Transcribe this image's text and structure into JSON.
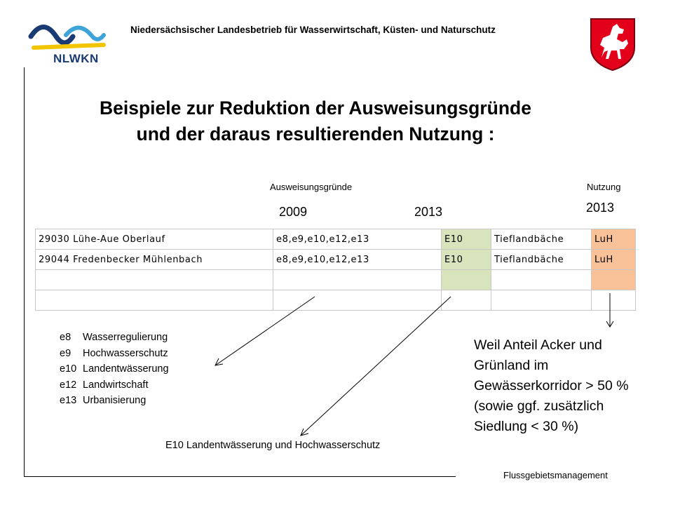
{
  "header": {
    "org_title": "Niedersächsischer Landesbetrieb für Wasserwirtschaft, Küsten- und Naturschutz",
    "logo_text": "NLWKN"
  },
  "title": {
    "line1": "Beispiele zur Reduktion der Ausweisungsgründe",
    "line2": "und der daraus resultierenden Nutzung :"
  },
  "labels": {
    "ausweisungsgruende": "Ausweisungsgründe",
    "nutzung": "Nutzung",
    "year_2009": "2009",
    "year_2013_a": "2013",
    "year_2013_b": "2013"
  },
  "table": {
    "rows": [
      {
        "name": "29030 Lühe-Aue Oberlauf",
        "codes_2009": "e8,e9,e10,e12,e13",
        "code_2013": "E10",
        "type": "Tieflandbäche",
        "use": "LuH"
      },
      {
        "name": "29044 Fredenbecker Mühlenbach",
        "codes_2009": "e8,e9,e10,e12,e13",
        "code_2013": "E10",
        "type": "Tieflandbäche",
        "use": "LuH"
      },
      {
        "name": "",
        "codes_2009": "",
        "code_2013": "",
        "type": "",
        "use": ""
      },
      {
        "name": "",
        "codes_2009": "",
        "code_2013": "",
        "type": "",
        "use": ""
      }
    ]
  },
  "legend": [
    {
      "code": "e8",
      "text": "Wasserregulierung"
    },
    {
      "code": "e9",
      "text": "Hochwasserschutz"
    },
    {
      "code": "e10",
      "text": "Landentwässerung"
    },
    {
      "code": "e12",
      "text": "Landwirtschaft"
    },
    {
      "code": "e13",
      "text": "Urbanisierung"
    }
  ],
  "e10_note": "E10 Landentwässerung und Hochwasserschutz",
  "reason": {
    "lines": [
      "Weil Anteil Acker und",
      "Grünland im",
      "Gewässerkorridor > 50 %",
      "(sowie ggf. zusätzlich",
      "Siedlung < 30 %)"
    ]
  },
  "footer": "Flussgebietsmanagement",
  "colors": {
    "green_cell": "#d7e4bc",
    "orange_cell": "#f9c197",
    "logo_blue": "#1a3a73",
    "logo_light_blue": "#3da3d8",
    "logo_yellow": "#f2c500",
    "crest_red": "#e2001a"
  }
}
